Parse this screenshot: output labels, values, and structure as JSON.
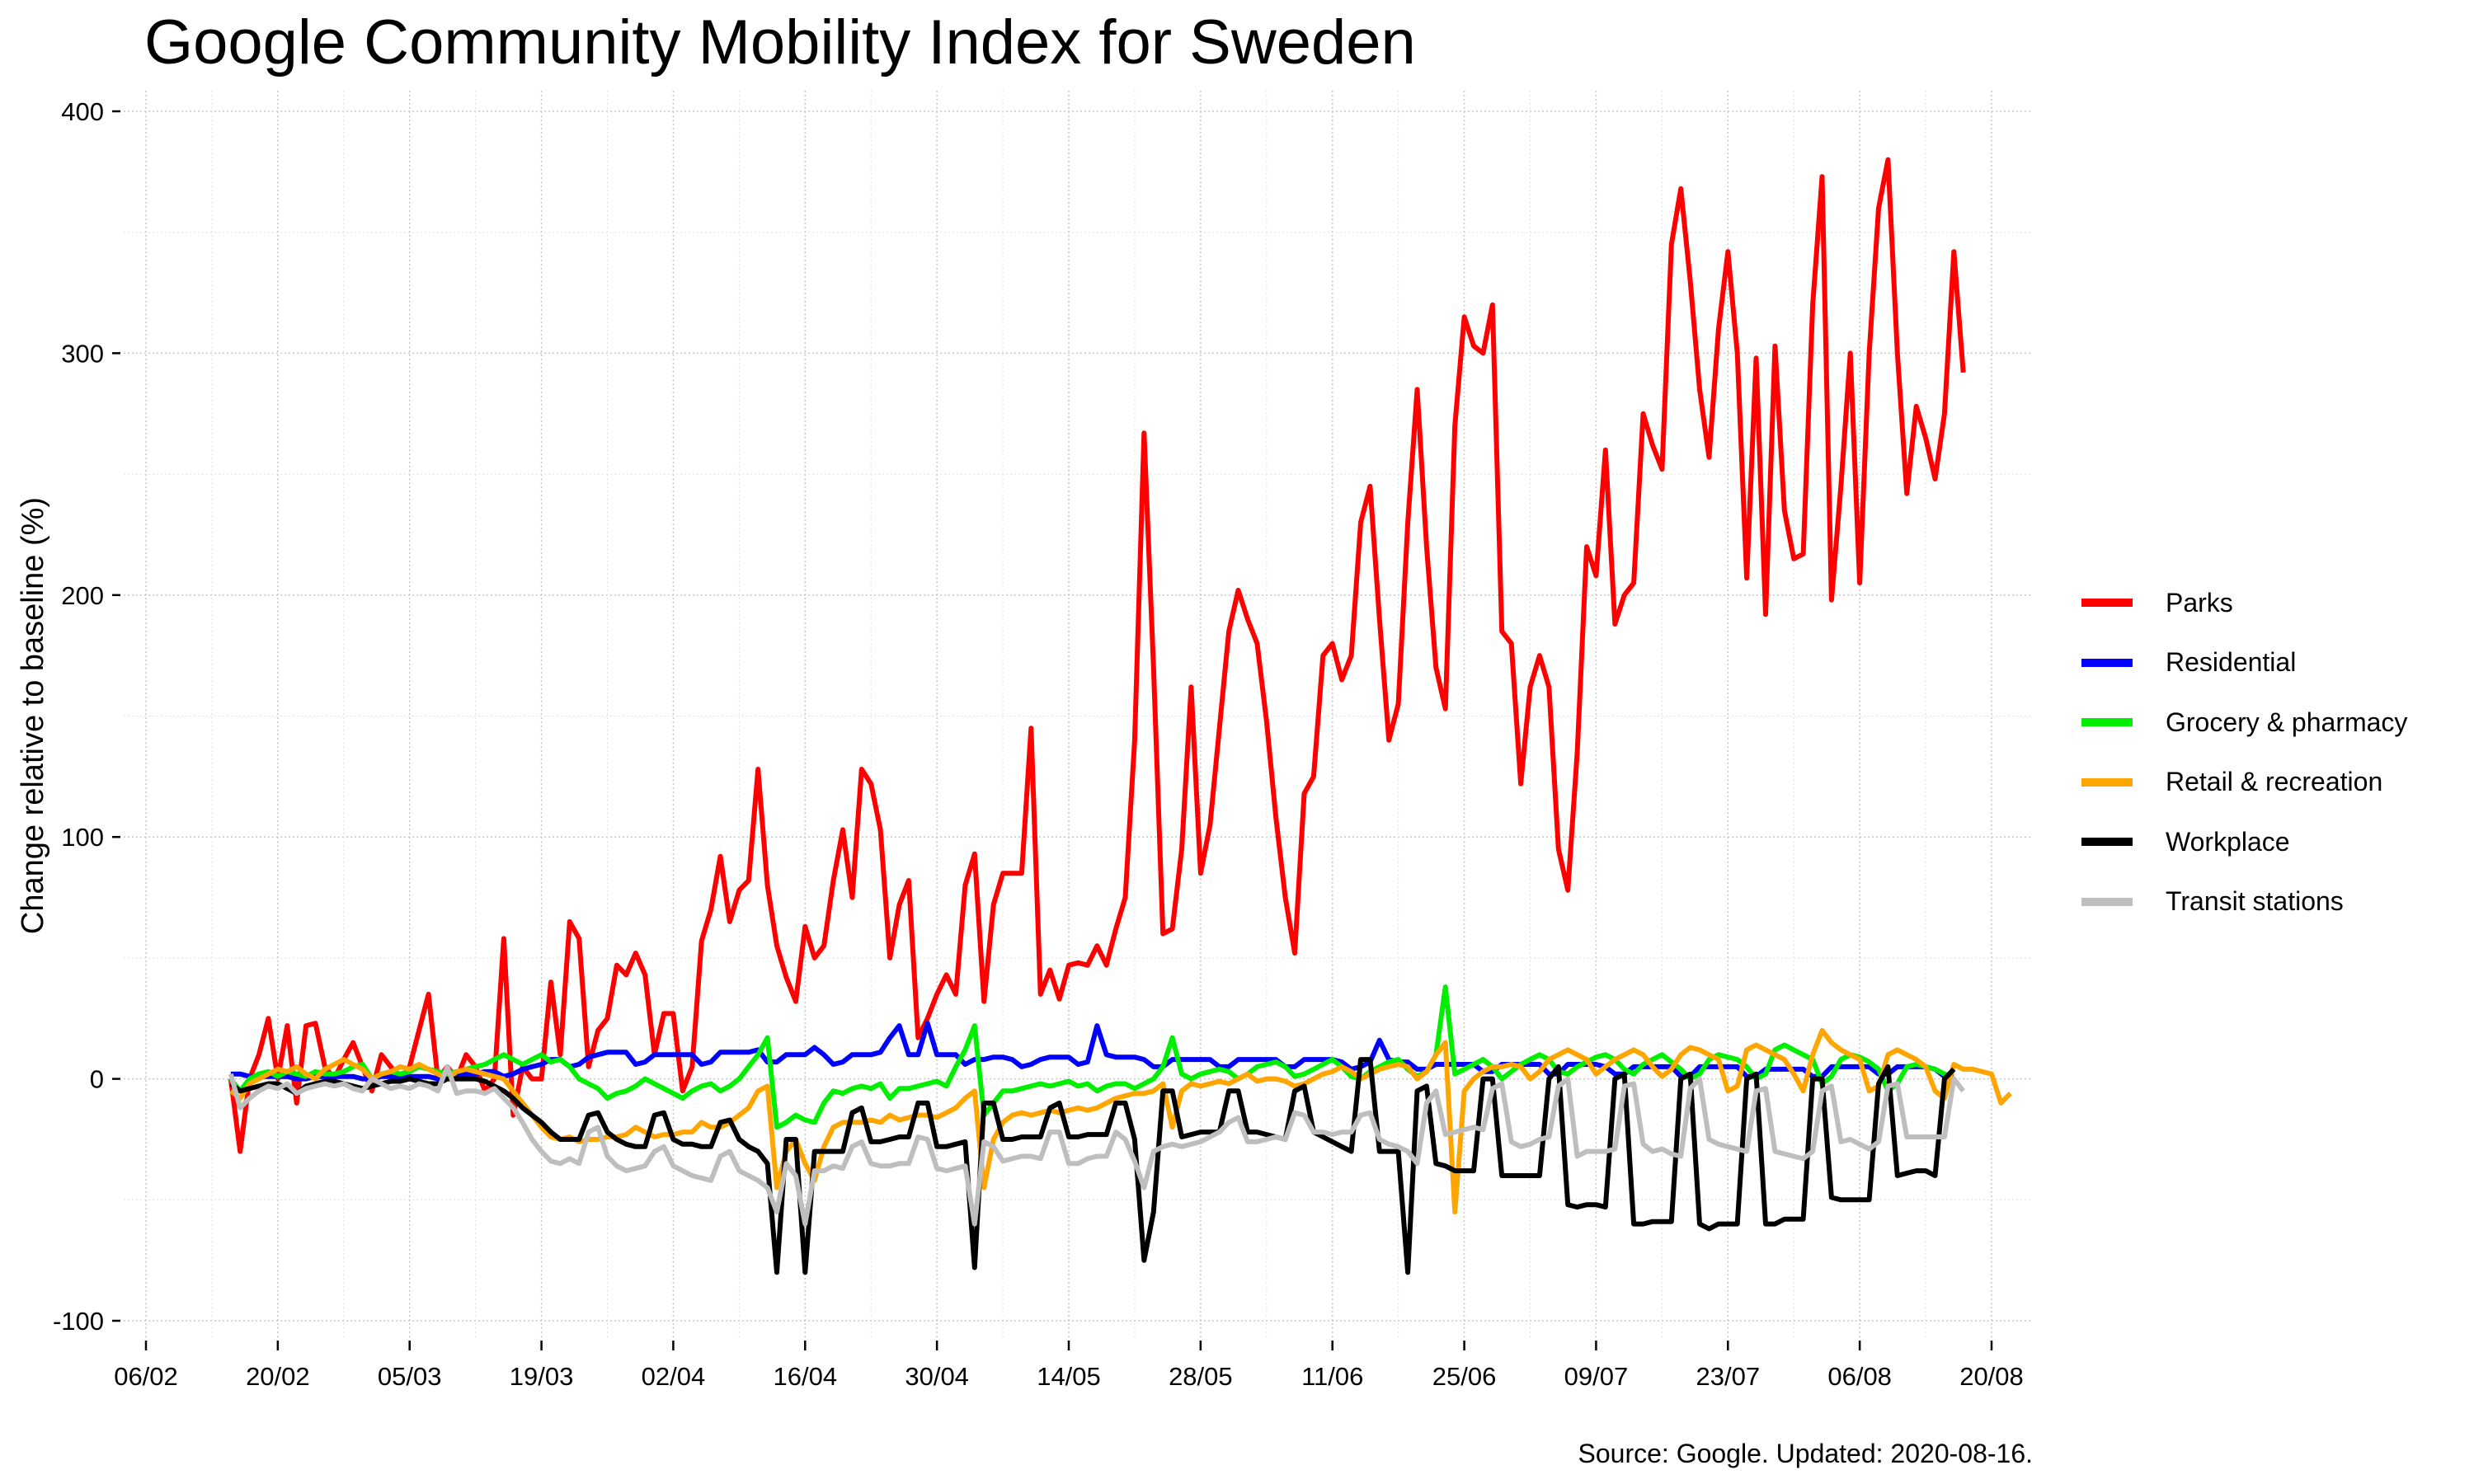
{
  "chart_data": {
    "type": "line",
    "title": "Google Community Mobility Index for Sweden",
    "xlabel": "",
    "ylabel": "Change relative to baseline (%)",
    "ylim": [
      -100,
      400
    ],
    "yticks": [
      -100,
      0,
      100,
      200,
      300,
      400
    ],
    "ytick_labels": [
      "-100",
      "0",
      "100",
      "200",
      "300",
      "400"
    ],
    "xlim": [
      "2020-02-06",
      "2020-08-20"
    ],
    "xticks": [
      "2020-02-06",
      "2020-02-20",
      "2020-03-05",
      "2020-03-19",
      "2020-04-02",
      "2020-04-16",
      "2020-04-30",
      "2020-05-14",
      "2020-05-28",
      "2020-06-11",
      "2020-06-25",
      "2020-07-09",
      "2020-07-23",
      "2020-08-06",
      "2020-08-20"
    ],
    "xtick_labels": [
      "06/02",
      "20/02",
      "05/03",
      "19/03",
      "02/04",
      "16/04",
      "30/04",
      "14/05",
      "28/05",
      "11/06",
      "25/06",
      "09/07",
      "23/07",
      "06/08",
      "20/08"
    ],
    "grid": true,
    "legend_position": "right",
    "x_start": "2020-02-15",
    "x_end": "2020-08-16",
    "series": [
      {
        "name": "Parks",
        "color": "#FF0000",
        "values": [
          0,
          -30,
          0,
          10,
          25,
          0,
          22,
          -10,
          22,
          23,
          5,
          0,
          8,
          15,
          5,
          -5,
          10,
          5,
          0,
          5,
          20,
          35,
          0,
          5,
          0,
          10,
          5,
          -5,
          0,
          58,
          -15,
          5,
          0,
          0,
          40,
          10,
          65,
          58,
          5,
          20,
          25,
          47,
          43,
          52,
          43,
          10,
          27,
          27,
          -5,
          5,
          57,
          70,
          92,
          65,
          78,
          82,
          128,
          80,
          55,
          42,
          32,
          63,
          50,
          55,
          82,
          103,
          75,
          128,
          122,
          103,
          50,
          72,
          82,
          17,
          25,
          35,
          43,
          35,
          80,
          93,
          32,
          72,
          85,
          85,
          85,
          145,
          35,
          45,
          33,
          47,
          48,
          47,
          55,
          47,
          62,
          75,
          140,
          267,
          170,
          60,
          62,
          95,
          162,
          85,
          105,
          145,
          185,
          202,
          190,
          180,
          148,
          108,
          75,
          52,
          118,
          125,
          175,
          180,
          165,
          175,
          230,
          245,
          190,
          140,
          155,
          230,
          285,
          220,
          170,
          153,
          270,
          315,
          303,
          300,
          320,
          185,
          180,
          122,
          162,
          175,
          162,
          95,
          78,
          135,
          220,
          208,
          260,
          188,
          200,
          205,
          275,
          262,
          252,
          345,
          368,
          330,
          285,
          257,
          310,
          342,
          300,
          207,
          298,
          192,
          303,
          235,
          215,
          217,
          320,
          373,
          198,
          245,
          300,
          205,
          300,
          360,
          380,
          300,
          242,
          278,
          265,
          248,
          275,
          342,
          292
        ]
      },
      {
        "name": "Residential",
        "color": "#0000FF",
        "values": [
          2,
          2,
          1,
          1,
          1,
          1,
          1,
          0,
          0,
          1,
          1,
          1,
          1,
          1,
          0,
          0,
          1,
          1,
          1,
          1,
          1,
          1,
          0,
          0,
          1,
          2,
          2,
          3,
          3,
          1,
          2,
          4,
          5,
          6,
          8,
          8,
          5,
          6,
          9,
          10,
          11,
          11,
          11,
          6,
          7,
          10,
          10,
          10,
          10,
          10,
          6,
          7,
          11,
          11,
          11,
          11,
          12,
          7,
          7,
          10,
          10,
          10,
          13,
          10,
          6,
          7,
          10,
          10,
          10,
          11,
          17,
          22,
          10,
          10,
          23,
          10,
          10,
          10,
          6,
          8,
          8,
          9,
          9,
          8,
          5,
          6,
          8,
          9,
          9,
          9,
          6,
          7,
          22,
          10,
          9,
          9,
          9,
          8,
          5,
          5,
          8,
          8,
          8,
          8,
          8,
          5,
          5,
          8,
          8,
          8,
          8,
          8,
          5,
          5,
          8,
          8,
          8,
          8,
          7,
          4,
          5,
          7,
          16,
          8,
          7,
          7,
          4,
          4,
          6,
          6,
          6,
          6,
          6,
          3,
          3,
          6,
          6,
          6,
          6,
          6,
          2,
          2,
          6,
          6,
          6,
          6,
          5,
          2,
          2,
          5,
          5,
          5,
          5,
          5,
          1,
          1,
          5,
          5,
          5,
          5,
          5,
          1,
          1,
          4,
          4,
          4,
          4,
          4,
          1,
          1,
          5,
          5,
          5,
          5,
          5,
          2,
          2,
          5,
          5,
          5,
          5,
          4,
          1,
          1
        ]
      },
      {
        "name": "Grocery & pharmacy",
        "color": "#00EE00",
        "values": [
          0,
          -5,
          0,
          2,
          3,
          1,
          3,
          2,
          1,
          3,
          2,
          2,
          3,
          5,
          6,
          0,
          2,
          3,
          2,
          3,
          5,
          4,
          3,
          2,
          3,
          4,
          5,
          6,
          8,
          10,
          8,
          6,
          8,
          10,
          7,
          8,
          5,
          0,
          -2,
          -4,
          -8,
          -6,
          -5,
          -3,
          0,
          -2,
          -4,
          -6,
          -8,
          -5,
          -3,
          -2,
          -5,
          -3,
          0,
          5,
          10,
          17,
          -20,
          -18,
          -15,
          -17,
          -18,
          -10,
          -5,
          -6,
          -4,
          -3,
          -4,
          -2,
          -8,
          -4,
          -4,
          -3,
          -2,
          -1,
          -3,
          5,
          12,
          22,
          -15,
          -10,
          -5,
          -5,
          -4,
          -3,
          -2,
          -3,
          -2,
          -1,
          -3,
          -2,
          -5,
          -3,
          -2,
          -2,
          -4,
          -2,
          0,
          5,
          17,
          2,
          0,
          2,
          3,
          4,
          3,
          0,
          2,
          5,
          6,
          7,
          5,
          1,
          2,
          4,
          6,
          8,
          5,
          1,
          0,
          3,
          5,
          7,
          8,
          4,
          1,
          3,
          10,
          38,
          2,
          4,
          6,
          8,
          5,
          0,
          3,
          6,
          8,
          10,
          8,
          3,
          2,
          5,
          7,
          9,
          10,
          8,
          4,
          2,
          6,
          8,
          10,
          7,
          4,
          0,
          2,
          8,
          10,
          9,
          8,
          5,
          0,
          2,
          12,
          14,
          12,
          10,
          8,
          -2,
          1,
          8,
          10,
          9,
          7,
          4,
          -5,
          -2,
          5,
          6,
          5,
          4,
          2,
          0
        ]
      },
      {
        "name": "Retail & recreation",
        "color": "#FFA500",
        "values": [
          -5,
          -8,
          -2,
          0,
          2,
          4,
          3,
          5,
          2,
          0,
          4,
          6,
          8,
          6,
          4,
          0,
          2,
          3,
          5,
          4,
          6,
          4,
          2,
          0,
          3,
          4,
          3,
          2,
          1,
          0,
          -5,
          -10,
          -15,
          -20,
          -24,
          -25,
          -24,
          -26,
          -25,
          -25,
          -24,
          -24,
          -23,
          -20,
          -22,
          -24,
          -23,
          -23,
          -22,
          -22,
          -18,
          -20,
          -20,
          -18,
          -15,
          -12,
          -5,
          -3,
          -45,
          -30,
          -25,
          -35,
          -42,
          -28,
          -20,
          -18,
          -18,
          -18,
          -17,
          -18,
          -15,
          -17,
          -16,
          -15,
          -15,
          -16,
          -14,
          -12,
          -8,
          -5,
          -45,
          -25,
          -18,
          -15,
          -14,
          -15,
          -14,
          -13,
          -14,
          -13,
          -12,
          -13,
          -12,
          -10,
          -8,
          -7,
          -6,
          -6,
          -5,
          -2,
          -20,
          -5,
          -2,
          -3,
          -2,
          -1,
          -2,
          0,
          2,
          -1,
          0,
          0,
          -1,
          -3,
          -2,
          0,
          2,
          3,
          5,
          3,
          0,
          2,
          4,
          5,
          6,
          5,
          0,
          3,
          10,
          15,
          -55,
          -5,
          0,
          3,
          5,
          5,
          6,
          5,
          0,
          3,
          8,
          10,
          12,
          10,
          8,
          2,
          5,
          8,
          10,
          12,
          10,
          5,
          1,
          4,
          10,
          13,
          12,
          10,
          8,
          -5,
          -3,
          12,
          14,
          12,
          10,
          8,
          2,
          -5,
          10,
          20,
          15,
          12,
          10,
          8,
          -5,
          -3,
          10,
          12,
          10,
          8,
          5,
          -5,
          -8,
          6,
          4,
          4,
          3,
          2,
          -10,
          -6
        ]
      },
      {
        "name": "Workplace",
        "color": "#000000",
        "values": [
          -2,
          -5,
          -4,
          -3,
          -2,
          -2,
          -4,
          -6,
          -3,
          -2,
          -1,
          -1,
          -2,
          -3,
          -4,
          -3,
          -2,
          -1,
          -1,
          0,
          -1,
          -2,
          -2,
          0,
          0,
          0,
          0,
          -1,
          -3,
          -5,
          -8,
          -12,
          -15,
          -18,
          -22,
          -25,
          -25,
          -25,
          -15,
          -14,
          -22,
          -25,
          -27,
          -28,
          -28,
          -15,
          -14,
          -25,
          -27,
          -27,
          -28,
          -28,
          -18,
          -17,
          -25,
          -28,
          -30,
          -35,
          -80,
          -25,
          -25,
          -80,
          -30,
          -30,
          -30,
          -30,
          -14,
          -12,
          -26,
          -26,
          -25,
          -24,
          -24,
          -10,
          -10,
          -28,
          -28,
          -27,
          -26,
          -78,
          -10,
          -10,
          -25,
          -25,
          -24,
          -24,
          -24,
          -12,
          -10,
          -24,
          -24,
          -23,
          -23,
          -23,
          -10,
          -10,
          -25,
          -75,
          -55,
          -5,
          -5,
          -24,
          -23,
          -22,
          -22,
          -22,
          -5,
          -5,
          -22,
          -22,
          -23,
          -24,
          -25,
          -5,
          -3,
          -22,
          -24,
          -26,
          -28,
          -30,
          8,
          8,
          -30,
          -30,
          -30,
          -80,
          -5,
          -3,
          -35,
          -36,
          -38,
          -38,
          -38,
          0,
          0,
          -40,
          -40,
          -40,
          -40,
          -40,
          0,
          5,
          -52,
          -53,
          -52,
          -52,
          -53,
          0,
          2,
          -60,
          -60,
          -59,
          -59,
          -59,
          0,
          2,
          -60,
          -62,
          -60,
          -60,
          -60,
          0,
          2,
          -60,
          -60,
          -58,
          -58,
          -58,
          0,
          0,
          -49,
          -50,
          -50,
          -50,
          -50,
          -2,
          5,
          -40,
          -39,
          -38,
          -38,
          -40,
          0,
          4
        ]
      },
      {
        "name": "Transit stations",
        "color": "#BEBEBE",
        "values": [
          2,
          -12,
          -8,
          -5,
          -3,
          -4,
          -2,
          -6,
          -4,
          -3,
          -2,
          -3,
          -2,
          -4,
          -5,
          0,
          -2,
          -4,
          -3,
          -4,
          -2,
          -3,
          -5,
          5,
          -6,
          -5,
          -5,
          -6,
          -4,
          -8,
          -12,
          -18,
          -25,
          -30,
          -34,
          -35,
          -33,
          -35,
          -22,
          -20,
          -32,
          -36,
          -38,
          -37,
          -36,
          -30,
          -28,
          -36,
          -38,
          -40,
          -41,
          -42,
          -32,
          -30,
          -38,
          -40,
          -42,
          -45,
          -55,
          -35,
          -40,
          -60,
          -38,
          -38,
          -36,
          -37,
          -28,
          -26,
          -35,
          -36,
          -36,
          -35,
          -35,
          -24,
          -25,
          -37,
          -38,
          -37,
          -36,
          -60,
          -26,
          -28,
          -34,
          -33,
          -32,
          -32,
          -33,
          -22,
          -22,
          -35,
          -35,
          -33,
          -32,
          -32,
          -22,
          -25,
          -34,
          -45,
          -30,
          -28,
          -27,
          -28,
          -27,
          -26,
          -24,
          -22,
          -18,
          -16,
          -26,
          -26,
          -25,
          -24,
          -25,
          -14,
          -15,
          -22,
          -22,
          -23,
          -22,
          -22,
          -15,
          -14,
          -25,
          -27,
          -28,
          -30,
          -35,
          -10,
          -5,
          -23,
          -22,
          -21,
          -20,
          -21,
          -4,
          -2,
          -26,
          -28,
          -27,
          -25,
          -24,
          -3,
          0,
          -32,
          -30,
          -30,
          -30,
          -29,
          -3,
          -2,
          -27,
          -30,
          -29,
          -31,
          -32,
          -4,
          0,
          -25,
          -27,
          -28,
          -29,
          -30,
          -5,
          -4,
          -30,
          -31,
          -32,
          -33,
          -30,
          -5,
          -3,
          -26,
          -25,
          -27,
          -29,
          -26,
          -3,
          -2,
          -24,
          -24,
          -24,
          -24,
          -24,
          0,
          -5
        ]
      }
    ],
    "annotation": "Source: Google. Updated: 2020-08-16."
  }
}
